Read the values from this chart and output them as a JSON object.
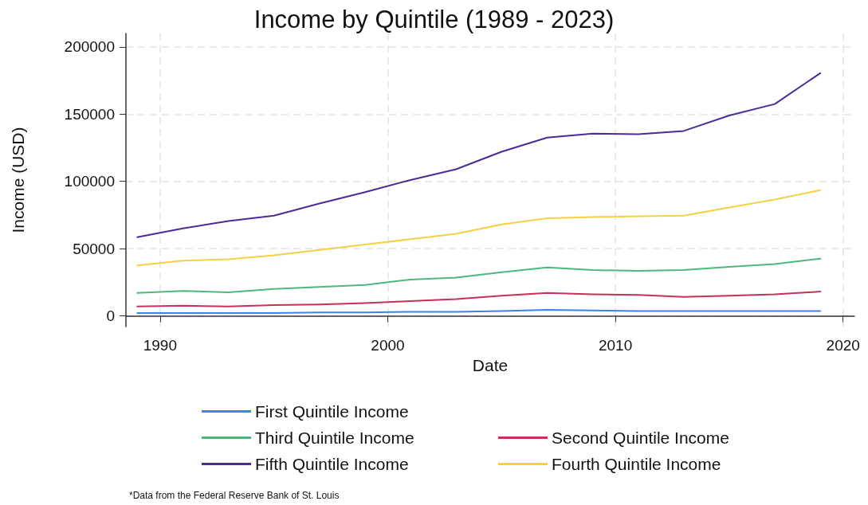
{
  "chart_data": {
    "type": "line",
    "title": "Income by Quintile (1989 - 2023)",
    "xlabel": "Date",
    "ylabel": "Income (USD)",
    "x": [
      1989,
      1991,
      1993,
      1995,
      1997,
      1999,
      2001,
      2003,
      2005,
      2007,
      2009,
      2011,
      2013,
      2015,
      2017,
      2019
    ],
    "series": [
      {
        "name": "First Quintile Income",
        "color": "#3c82f0",
        "values": [
          2000,
          2000,
          2000,
          2000,
          2500,
          2500,
          3000,
          3000,
          3500,
          4500,
          4000,
          3500,
          3500,
          3500,
          3500,
          3500
        ]
      },
      {
        "name": "Second Quintile Income",
        "color": "#c8305a",
        "values": [
          7000,
          7500,
          7000,
          8000,
          8500,
          9500,
          11000,
          12500,
          15000,
          17000,
          16000,
          15500,
          14000,
          15000,
          16000,
          18000
        ]
      },
      {
        "name": "Third Quintile Income",
        "color": "#4cb87a",
        "values": [
          17000,
          18500,
          17500,
          20000,
          21500,
          23000,
          27000,
          28500,
          32500,
          36000,
          34000,
          33500,
          34000,
          36500,
          38500,
          42500
        ]
      },
      {
        "name": "Fourth Quintile Income",
        "color": "#f5d042",
        "values": [
          37500,
          41000,
          42000,
          45000,
          49000,
          53000,
          57000,
          61000,
          68000,
          72500,
          73500,
          74000,
          74500,
          80500,
          86500,
          93500
        ]
      },
      {
        "name": "Fifth Quintile Income",
        "color": "#4b2c96",
        "values": [
          58500,
          65000,
          70500,
          74500,
          83500,
          92000,
          101000,
          109000,
          122000,
          132500,
          135500,
          135000,
          137500,
          149000,
          157500,
          180500
        ]
      }
    ],
    "xlim": [
      1988.5,
      2020.5
    ],
    "xticks": [
      1990,
      2000,
      2010,
      2020
    ],
    "ylim": [
      -8000,
      210000
    ],
    "yticks": [
      0,
      50000,
      100000,
      150000,
      200000
    ],
    "grid": true,
    "legend": "bottom",
    "marker": "none",
    "line_style": "solid",
    "annotations": [
      "*Data from the Federal Reserve Bank of St. Louis"
    ]
  }
}
